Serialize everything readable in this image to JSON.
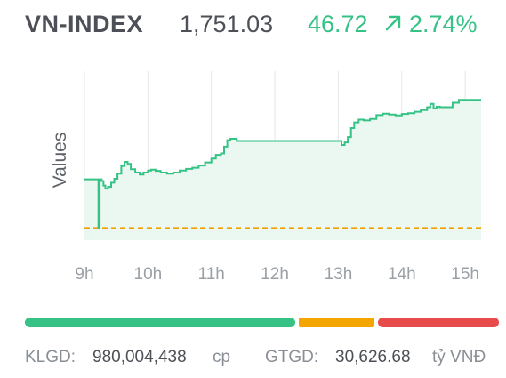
{
  "header": {
    "index_name": "VN-INDEX",
    "value": "1,751.03",
    "change": "46.72",
    "change_pct": "2.74%",
    "direction_icon": "arrow-up-right-icon",
    "change_color": "#35c284"
  },
  "chart_data": {
    "type": "area",
    "ylabel": "Values",
    "x_ticks": [
      "9h",
      "10h",
      "11h",
      "12h",
      "13h",
      "14h",
      "15h"
    ],
    "x_tick_hours": [
      9,
      10,
      11,
      12,
      13,
      14,
      15
    ],
    "xlim": [
      9,
      15.25
    ],
    "ylim": [
      1700,
      1760
    ],
    "reference_value": 1704.31,
    "reference_color": "#f4a100",
    "line_color": "#35c284",
    "fill_color": "#eaf8f1",
    "grid": "vertical",
    "series": [
      {
        "x": [
          9.0,
          9.2,
          9.22,
          9.24,
          9.27,
          9.3,
          9.33,
          9.37,
          9.42,
          9.47,
          9.52,
          9.58,
          9.63,
          9.68,
          9.73,
          9.8,
          9.87,
          9.93,
          10.0,
          10.05,
          10.12,
          10.2,
          10.3,
          10.4,
          10.5,
          10.6,
          10.7,
          10.8,
          10.9,
          11.0,
          11.07,
          11.15,
          11.2,
          11.25,
          11.3,
          11.4,
          12.0,
          12.5,
          13.0,
          13.05,
          13.1,
          13.15,
          13.2,
          13.25,
          13.32,
          13.4,
          13.5,
          13.6,
          13.7,
          13.8,
          13.9,
          14.0,
          14.1,
          14.2,
          14.3,
          14.4,
          14.45,
          14.5,
          14.55,
          14.6,
          14.7,
          14.8,
          14.9,
          15.25
        ],
        "y": [
          1721.6,
          1721.6,
          1704.31,
          1721.6,
          1721.0,
          1719.4,
          1718.3,
          1718.9,
          1720.4,
          1721.8,
          1723.6,
          1726.3,
          1727.8,
          1727.1,
          1725.2,
          1724.0,
          1723.3,
          1724.0,
          1724.7,
          1725.0,
          1724.6,
          1724.0,
          1723.6,
          1724.0,
          1724.7,
          1725.3,
          1725.7,
          1726.5,
          1727.6,
          1729.0,
          1730.3,
          1730.8,
          1733.2,
          1735.5,
          1736.0,
          1735.2,
          1735.2,
          1735.2,
          1735.2,
          1733.8,
          1734.7,
          1736.6,
          1739.8,
          1741.8,
          1742.8,
          1742.5,
          1743.0,
          1744.4,
          1744.9,
          1744.6,
          1744.3,
          1744.8,
          1745.1,
          1745.6,
          1746.2,
          1747.2,
          1748.4,
          1746.8,
          1747.4,
          1747.2,
          1747.2,
          1748.8,
          1749.8,
          1749.8
        ]
      }
    ]
  },
  "breadth": {
    "advancing_color": "#35c284",
    "unchanged_color": "#f5a500",
    "declining_color": "#e84b4b",
    "advancing_fraction": 0.574,
    "unchanged_fraction": 0.167,
    "declining_fraction": 0.259
  },
  "stats": {
    "klgd_label": "KLGD:",
    "klgd_value": "980,004,438",
    "klgd_unit": "cp",
    "gtgd_label": "GTGD:",
    "gtgd_value": "30,626.68",
    "gtgd_unit": "tỷ VNĐ"
  }
}
